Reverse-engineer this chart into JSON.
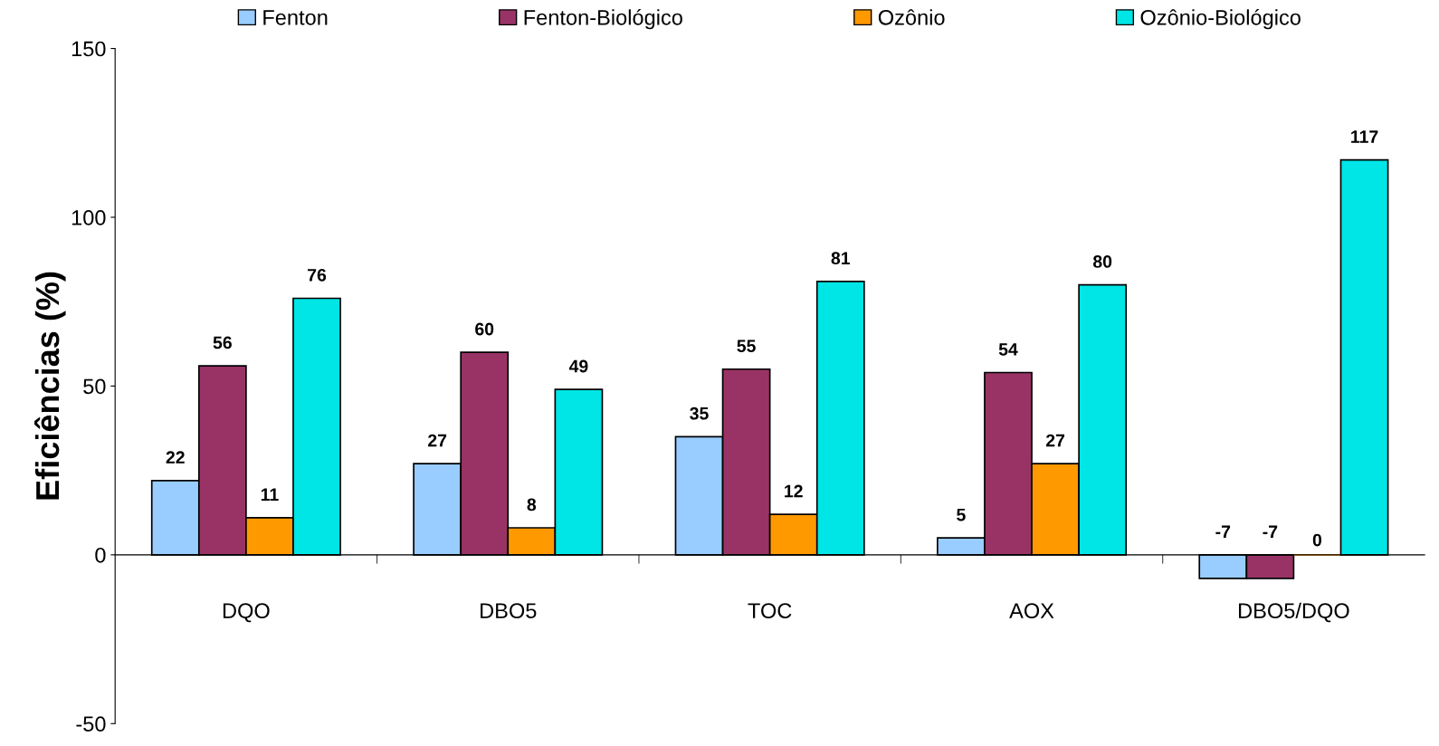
{
  "chart_data": {
    "type": "bar",
    "ylabel": "Eficiências (%)",
    "categories": [
      "DQO",
      "DBO5",
      "TOC",
      "AOX",
      "DBO5/DQO"
    ],
    "series": [
      {
        "name": "Fenton",
        "color": "#99ccff",
        "values": [
          22,
          27,
          35,
          5,
          -7
        ]
      },
      {
        "name": "Fenton-Biológico",
        "color": "#993366",
        "values": [
          56,
          60,
          55,
          54,
          -7
        ]
      },
      {
        "name": "Ozônio",
        "color": "#ff9900",
        "values": [
          11,
          8,
          12,
          27,
          0
        ]
      },
      {
        "name": "Ozônio-Biológico",
        "color": "#00e5e5",
        "values": [
          76,
          49,
          81,
          80,
          117
        ]
      }
    ],
    "ylim": [
      -50,
      150
    ],
    "yticks": [
      -50,
      0,
      50,
      100,
      150
    ],
    "data_labels": true,
    "legend": "top",
    "grid": false
  }
}
